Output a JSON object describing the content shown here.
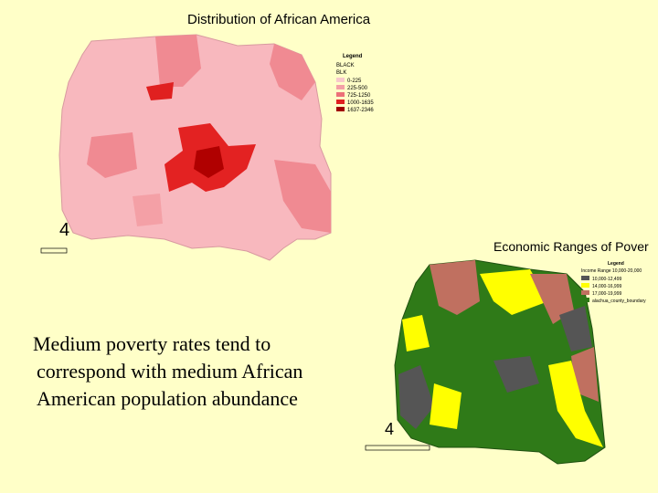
{
  "map1": {
    "title": "Distribution of African America",
    "number": "4",
    "legend": {
      "heading": "Legend",
      "field": "BLACK",
      "subfield": "BLK",
      "items": [
        "0-225",
        "225-500",
        "725-1250",
        "1000-1635",
        "1637-2346"
      ]
    }
  },
  "map2": {
    "title": "Economic Ranges of Pover",
    "number": "4",
    "legend": {
      "heading": "Legend",
      "field": "Income Range 10,000-20,000",
      "items": [
        "10,000-12,499",
        "14,000-16,999",
        "17,000-19,999",
        "alachua_county_boundary"
      ]
    }
  },
  "note": {
    "lines": [
      "Medium poverty rates tend to",
      "correspond with medium African",
      "American population abundance"
    ]
  }
}
